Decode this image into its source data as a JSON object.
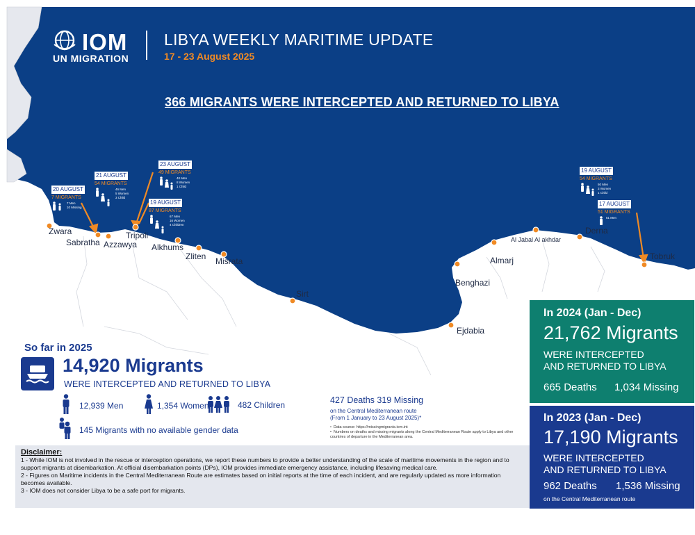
{
  "header": {
    "logo_text": "IOM",
    "logo_sub": "UN MIGRATION",
    "title": "LIBYA WEEKLY MARITIME UPDATE",
    "date_range": "17 - 23 August 2025"
  },
  "headline": "366 MIGRANTS WERE INTERCEPTED AND RETURNED TO LIBYA",
  "events": [
    {
      "date": "20 AUGUST",
      "migrants": "7 MIGRANTS",
      "details": [
        "7 Men",
        "",
        "10 Missing"
      ]
    },
    {
      "date": "21 AUGUST",
      "migrants": "54 MIGRANTS",
      "details": [
        "46 Men",
        "5 Women",
        "3 Child"
      ]
    },
    {
      "date": "23 AUGUST",
      "migrants": "49 MIGRANTS",
      "details": [
        "40 Men",
        "8 Women",
        "1 Child"
      ]
    },
    {
      "date": "19 AUGUST",
      "migrants": "87 MIGRANTS",
      "details": [
        "67 Men",
        "16 Women",
        "4 Children"
      ]
    },
    {
      "date": "19 AUGUST",
      "migrants": "54 MIGRANTS",
      "details": [
        "50 Men",
        "3 Women",
        "1 Child"
      ]
    },
    {
      "date": "17 AUGUST",
      "migrants": "51 MIGRANTS",
      "details": [
        "51 Men"
      ]
    }
  ],
  "cities": {
    "zwara": "Zwara",
    "sabratha": "Sabratha",
    "azzawya": "Azzawya",
    "tripoli": "Tripoli",
    "alkhums": "Alkhums",
    "zliten": "Zliten",
    "misrata": "Misrata",
    "sirt": "Sirt",
    "benghazi": "Benghazi",
    "ejdabia": "Ejdabia",
    "almarj": "Almarj",
    "al_jabal": "Al Jabal Al akhdar",
    "derna": "Derna",
    "tobruk": "Tobruk"
  },
  "so_far": {
    "label": "So far in 2025",
    "number": "14,920 Migrants",
    "subtitle": "WERE INTERCEPTED AND RETURNED TO LIBYA",
    "men": "12,939 Men",
    "women": "1,354 Women",
    "children": "482 Children",
    "no_gender": "145 Migrants with no available gender data",
    "deaths_missing": "427 Deaths  319 Missing",
    "route": "on the Central Mediterranean route",
    "period": "(From 1 January to 23 August 2025)*",
    "note1": "Data source: https://missingmigrants.iom.int",
    "note2": "Numbers on deaths and missing migrants along the Central Mediterranean Route apply to Libya and other countries of departure in the Mediterranean area."
  },
  "disclaimer": {
    "title": "Disclaimer:",
    "items": [
      "1 - While IOM is not involved in the rescue or interception operations, we report these numbers to provide a better understanding of the scale of maritime movements in the region and to support migrants at disembarkation. At official disembarkation points (DPs), IOM provides immediate emergency assistance, including lifesaving medical care.",
      "2 - Figures on Maritime incidents in the Central Mediterranean Route are estimates based on initial reports at the time of each incident, and are regularly updated as more information becomes available.",
      "3 - IOM does not consider Libya to be a safe port for migrants."
    ]
  },
  "panel_2024": {
    "year": "In 2024 (Jan - Dec)",
    "number": "21,762 Migrants",
    "line1": "WERE INTERCEPTED",
    "line2": "AND RETURNED TO LIBYA",
    "deaths": "665 Deaths",
    "missing": "1,034 Missing"
  },
  "panel_2023": {
    "year": "In 2023 (Jan - Dec)",
    "number": "17,190 Migrants",
    "line1": "WERE INTERCEPTED",
    "line2": "AND RETURNED TO LIBYA",
    "deaths": "962 Deaths",
    "missing": "1,536 Missing",
    "route": "on the Central Mediterranean route"
  },
  "colors": {
    "sea": "#0b3f86",
    "land": "#f2f3f6",
    "navy": "#1a3a8f",
    "orange": "#f08a24",
    "teal": "#0e7f6f"
  }
}
